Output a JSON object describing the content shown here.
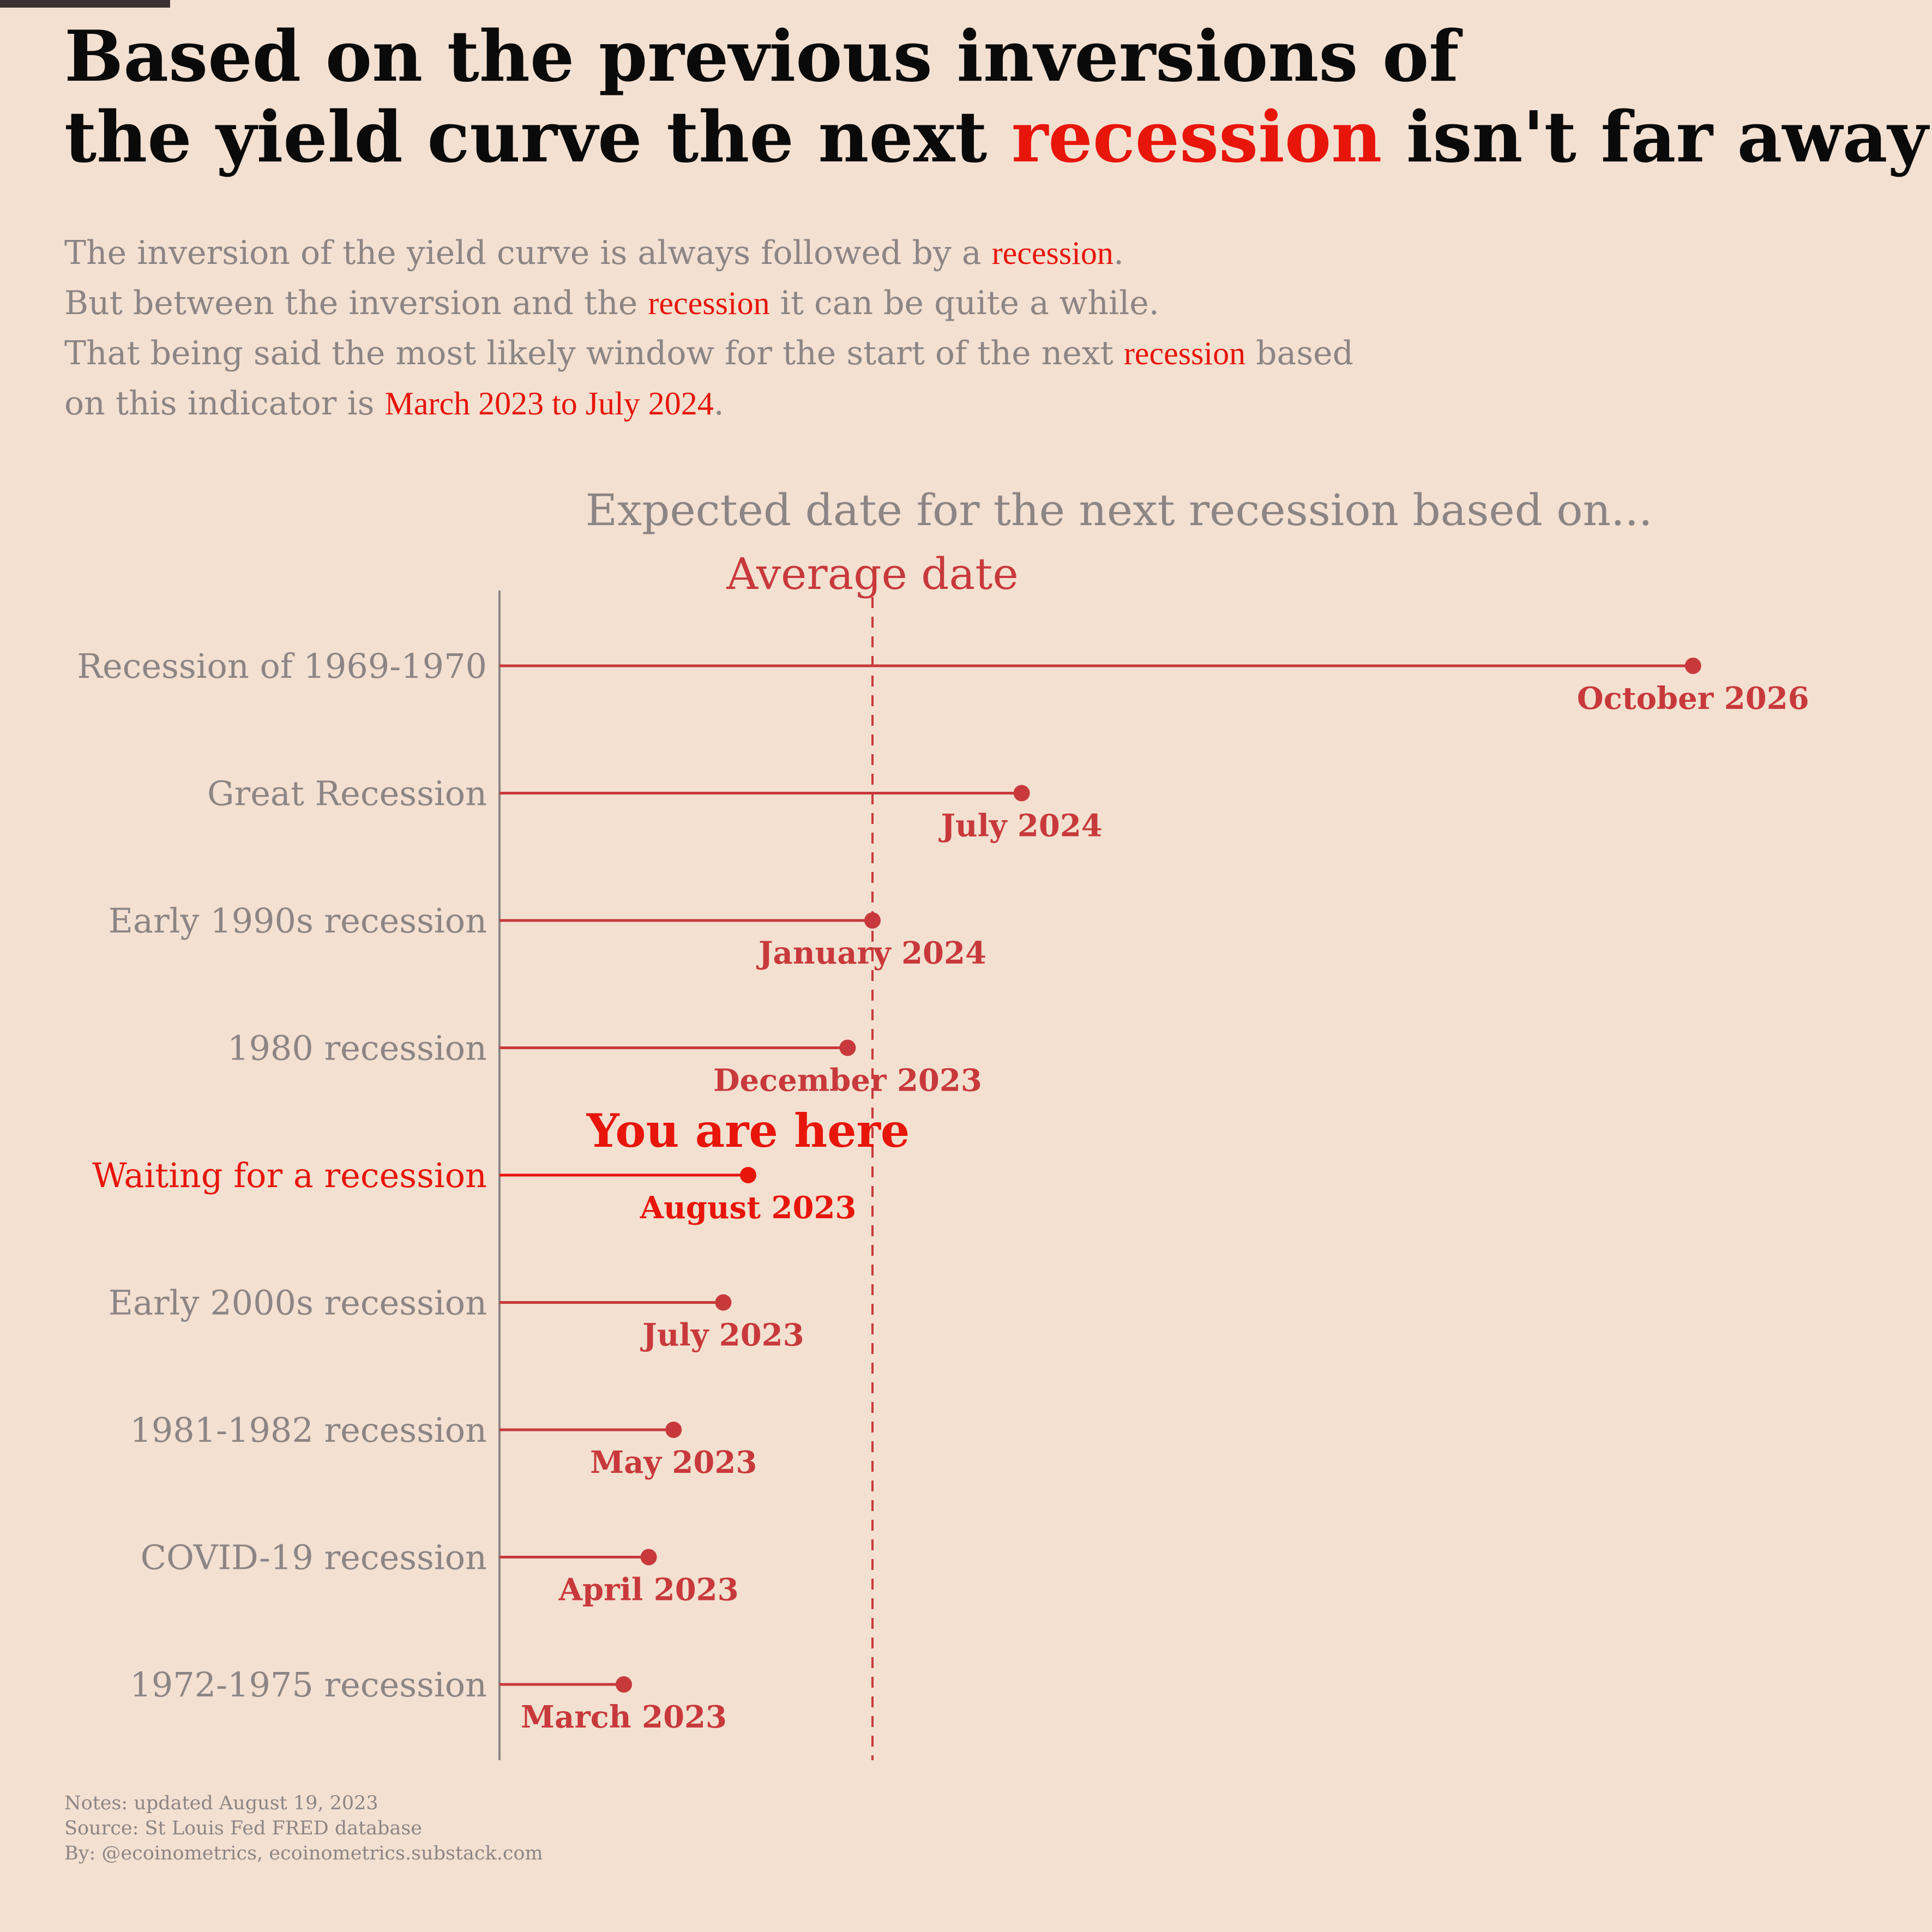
{
  "title": {
    "line1": "Based on the previous inversions of",
    "line2_pre": "the yield curve the next ",
    "line2_accent": "recession",
    "line2_post": " isn't far away"
  },
  "subtitle": {
    "l1_pre": "The inversion of the yield curve is always followed by a ",
    "l1_accent": "recession",
    "l1_post": ".",
    "l2_pre": "But between the inversion and the ",
    "l2_accent": "recession",
    "l2_post": " it can be quite a while.",
    "l3_pre": "That being said the most likely window for the start of the next ",
    "l3_accent": "recession",
    "l3_post": " based",
    "l4_pre": "on this indicator is ",
    "l4_accent": "March 2023 to July 2024",
    "l4_post": "."
  },
  "notes": {
    "line1": "Notes: updated August 19, 2023",
    "line2": "Source: St Louis Fed FRED database",
    "line3": "By: @ecoinometrics, ecoinometrics.substack.com"
  },
  "colors": {
    "background": "#f3e0d1",
    "series": "#c8393b",
    "highlight": "#e8150b",
    "muted_text": "#8c8585",
    "axis": "#8c8585"
  },
  "chart_data": {
    "type": "lollipop",
    "title": "Expected date for the next recession based on...",
    "x_start": "2022-10",
    "reference_line": {
      "label": "Average date",
      "value": "2024-01"
    },
    "annotation": {
      "text": "You are here",
      "category": "Waiting for a recession"
    },
    "highlight_category": "Waiting for a recession",
    "categories": [
      "Recession of 1969-1970",
      "Great Recession",
      "Early 1990s recession",
      "1980 recession",
      "Waiting for a recession",
      "Early 2000s recession",
      "1981-1982 recession",
      "COVID-19 recession",
      "1972-1975 recession"
    ],
    "values": [
      "2026-10",
      "2024-07",
      "2024-01",
      "2023-12",
      "2023-08",
      "2023-07",
      "2023-05",
      "2023-04",
      "2023-03"
    ],
    "value_labels": [
      "October 2026",
      "July 2024",
      "January 2024",
      "December 2023",
      "August 2023",
      "July 2023",
      "May 2023",
      "April 2023",
      "March 2023"
    ],
    "grid": false
  }
}
